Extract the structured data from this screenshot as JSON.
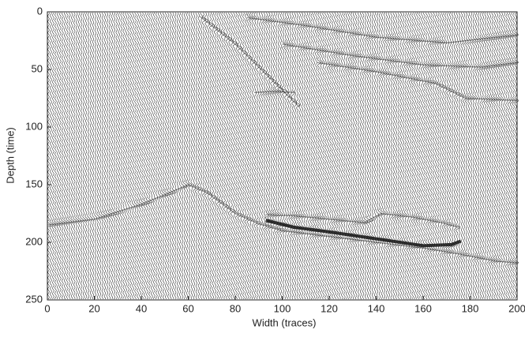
{
  "chart_data": {
    "type": "seismic",
    "x_label": "Width (traces)",
    "y_label": "Depth (time)",
    "xlim": [
      0,
      200
    ],
    "ylim": [
      250,
      0
    ],
    "xticks": [
      0,
      20,
      40,
      60,
      80,
      100,
      120,
      140,
      160,
      180,
      200
    ],
    "yticks": [
      0,
      50,
      100,
      150,
      200,
      250
    ],
    "trace_count": 200,
    "color": "#111111",
    "series": [
      {
        "x": [
          0,
          20,
          40,
          52,
          60,
          68,
          80,
          90,
          100,
          120,
          140,
          160,
          175,
          190,
          200
        ],
        "values": [
          185,
          180,
          167,
          157,
          150,
          157,
          175,
          184,
          190,
          195,
          200,
          205,
          210,
          216,
          218
        ]
      },
      {
        "x": [
          93,
          105,
          120,
          135,
          142,
          155,
          168,
          175
        ],
        "values": [
          176,
          177,
          180,
          183,
          175,
          178,
          183,
          187
        ]
      },
      {
        "x": [
          93,
          105,
          120,
          140,
          160,
          172,
          176
        ],
        "values": [
          181,
          187,
          191,
          197,
          203,
          202,
          199
        ]
      },
      {
        "x": [
          65,
          80,
          95,
          107
        ],
        "values": [
          4,
          28,
          58,
          82
        ]
      },
      {
        "x": [
          88,
          98,
          105
        ],
        "values": [
          70,
          69,
          70
        ]
      },
      {
        "x": [
          85,
          110,
          140,
          170,
          200
        ],
        "values": [
          5,
          12,
          22,
          27,
          20
        ]
      },
      {
        "x": [
          100,
          130,
          160,
          185,
          200
        ],
        "values": [
          28,
          38,
          46,
          48,
          44
        ]
      },
      {
        "x": [
          115,
          140,
          165,
          178,
          200
        ],
        "values": [
          44,
          52,
          62,
          75,
          77
        ]
      }
    ]
  }
}
